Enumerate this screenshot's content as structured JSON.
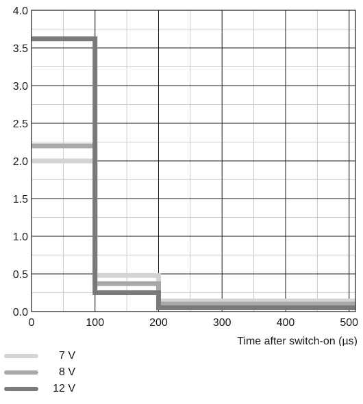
{
  "chart_data": {
    "type": "line",
    "title": "",
    "xlabel": "Time after switch-on (µs)",
    "ylabel": "",
    "xlim": [
      0,
      510
    ],
    "ylim": [
      0,
      4.0
    ],
    "x_ticks": [
      0,
      100,
      200,
      300,
      400,
      500
    ],
    "y_ticks": [
      0.0,
      0.5,
      1.0,
      1.5,
      2.0,
      2.5,
      3.0,
      3.5,
      4.0
    ],
    "y_tick_labels": [
      "0.0",
      "0.5",
      "1.0",
      "1.5",
      "2.0",
      "2.5",
      "3.0",
      "3.5",
      "4.0"
    ],
    "x_minor_step": 50,
    "y_minor_step": 0.25,
    "grid": true,
    "legend_position": "bottom-left",
    "series": [
      {
        "name": "7 V",
        "color": "#d3d3d3",
        "x": [
          0,
          100,
          100,
          200,
          200,
          510
        ],
        "y": [
          2.0,
          2.0,
          0.48,
          0.48,
          0.14,
          0.14
        ]
      },
      {
        "name": "8 V",
        "color": "#a9a9a9",
        "x": [
          0,
          100,
          100,
          200,
          200,
          510
        ],
        "y": [
          2.2,
          2.2,
          0.37,
          0.37,
          0.1,
          0.1
        ]
      },
      {
        "name": "12 V",
        "color": "#7a7a7a",
        "x": [
          0,
          100,
          100,
          200,
          200,
          510
        ],
        "y": [
          3.62,
          3.62,
          0.25,
          0.25,
          0.05,
          0.05
        ]
      }
    ]
  }
}
